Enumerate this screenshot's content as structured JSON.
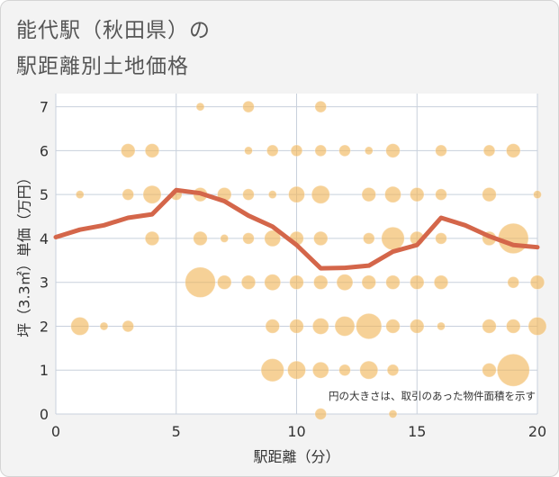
{
  "title_line1": "能代駅（秋田県）の",
  "title_line2": "駅距離別土地価格",
  "chart_data": {
    "type": "scatter",
    "title": "能代駅（秋田県）の駅距離別土地価格",
    "xlabel": "駅距離（分）",
    "ylabel": "坪（3.3㎡）単価（万円）",
    "xlim": [
      0,
      20
    ],
    "ylim": [
      0,
      7.3
    ],
    "xticks": [
      "0",
      "5",
      "10",
      "15",
      "20"
    ],
    "yticks": [
      "0",
      "1",
      "2",
      "3",
      "4",
      "5",
      "6",
      "7"
    ],
    "note": "円の大きさは、取引のあった物件面積を示す",
    "colors": {
      "bubble": "#f0b557",
      "trend": "#d4664a",
      "grid": "#c8d0dc",
      "plot_bg": "#ffffff"
    },
    "bubbles": [
      {
        "x": 6,
        "y": 7,
        "s": 1
      },
      {
        "x": 8,
        "y": 7,
        "s": 2
      },
      {
        "x": 11,
        "y": 7,
        "s": 2
      },
      {
        "x": 3,
        "y": 6,
        "s": 3
      },
      {
        "x": 4,
        "y": 6,
        "s": 3
      },
      {
        "x": 8,
        "y": 6,
        "s": 1
      },
      {
        "x": 9,
        "y": 6,
        "s": 2
      },
      {
        "x": 10,
        "y": 6,
        "s": 2
      },
      {
        "x": 11,
        "y": 6,
        "s": 2
      },
      {
        "x": 12,
        "y": 6,
        "s": 2
      },
      {
        "x": 13,
        "y": 6,
        "s": 1
      },
      {
        "x": 14,
        "y": 6,
        "s": 3
      },
      {
        "x": 16,
        "y": 6,
        "s": 2
      },
      {
        "x": 18,
        "y": 6,
        "s": 2
      },
      {
        "x": 19,
        "y": 6,
        "s": 3
      },
      {
        "x": 1,
        "y": 5,
        "s": 1
      },
      {
        "x": 3,
        "y": 5,
        "s": 2
      },
      {
        "x": 4,
        "y": 5,
        "s": 5
      },
      {
        "x": 5,
        "y": 5,
        "s": 2
      },
      {
        "x": 6,
        "y": 5,
        "s": 3
      },
      {
        "x": 7,
        "y": 5,
        "s": 3
      },
      {
        "x": 8,
        "y": 5,
        "s": 2
      },
      {
        "x": 9,
        "y": 5,
        "s": 1
      },
      {
        "x": 10,
        "y": 5,
        "s": 4
      },
      {
        "x": 11,
        "y": 5,
        "s": 5
      },
      {
        "x": 13,
        "y": 5,
        "s": 3
      },
      {
        "x": 14,
        "y": 5,
        "s": 4
      },
      {
        "x": 15,
        "y": 5,
        "s": 3
      },
      {
        "x": 16,
        "y": 5,
        "s": 2
      },
      {
        "x": 18,
        "y": 5,
        "s": 3
      },
      {
        "x": 20,
        "y": 5,
        "s": 1
      },
      {
        "x": 4,
        "y": 4,
        "s": 3
      },
      {
        "x": 6,
        "y": 4,
        "s": 3
      },
      {
        "x": 7,
        "y": 4,
        "s": 1
      },
      {
        "x": 8,
        "y": 4,
        "s": 2
      },
      {
        "x": 9,
        "y": 4,
        "s": 4
      },
      {
        "x": 10,
        "y": 4,
        "s": 3
      },
      {
        "x": 11,
        "y": 4,
        "s": 3
      },
      {
        "x": 13,
        "y": 4,
        "s": 2
      },
      {
        "x": 14,
        "y": 4,
        "s": 8
      },
      {
        "x": 15,
        "y": 4,
        "s": 3
      },
      {
        "x": 16,
        "y": 4,
        "s": 2
      },
      {
        "x": 18,
        "y": 4,
        "s": 3
      },
      {
        "x": 19,
        "y": 4,
        "s": 14
      },
      {
        "x": 6,
        "y": 3,
        "s": 14
      },
      {
        "x": 7,
        "y": 3,
        "s": 3
      },
      {
        "x": 8,
        "y": 3,
        "s": 3
      },
      {
        "x": 9,
        "y": 3,
        "s": 4
      },
      {
        "x": 10,
        "y": 3,
        "s": 3
      },
      {
        "x": 11,
        "y": 3,
        "s": 3
      },
      {
        "x": 12,
        "y": 3,
        "s": 4
      },
      {
        "x": 13,
        "y": 3,
        "s": 3
      },
      {
        "x": 14,
        "y": 3,
        "s": 3
      },
      {
        "x": 15,
        "y": 3,
        "s": 3
      },
      {
        "x": 16,
        "y": 3,
        "s": 3
      },
      {
        "x": 19,
        "y": 3,
        "s": 2
      },
      {
        "x": 20,
        "y": 3,
        "s": 3
      },
      {
        "x": 1,
        "y": 2,
        "s": 5
      },
      {
        "x": 2,
        "y": 2,
        "s": 1
      },
      {
        "x": 3,
        "y": 2,
        "s": 2
      },
      {
        "x": 9,
        "y": 2,
        "s": 3
      },
      {
        "x": 10,
        "y": 2,
        "s": 3
      },
      {
        "x": 11,
        "y": 2,
        "s": 4
      },
      {
        "x": 12,
        "y": 2,
        "s": 6
      },
      {
        "x": 13,
        "y": 2,
        "s": 10
      },
      {
        "x": 14,
        "y": 2,
        "s": 3
      },
      {
        "x": 15,
        "y": 2,
        "s": 3
      },
      {
        "x": 16,
        "y": 2,
        "s": 1
      },
      {
        "x": 18,
        "y": 2,
        "s": 3
      },
      {
        "x": 19,
        "y": 2,
        "s": 3
      },
      {
        "x": 20,
        "y": 2,
        "s": 5
      },
      {
        "x": 9,
        "y": 1,
        "s": 8
      },
      {
        "x": 10,
        "y": 1,
        "s": 5
      },
      {
        "x": 11,
        "y": 1,
        "s": 4
      },
      {
        "x": 12,
        "y": 1,
        "s": 2
      },
      {
        "x": 13,
        "y": 1,
        "s": 5
      },
      {
        "x": 14,
        "y": 1,
        "s": 2
      },
      {
        "x": 18,
        "y": 1,
        "s": 3
      },
      {
        "x": 19,
        "y": 1,
        "s": 16
      },
      {
        "x": 11,
        "y": 0,
        "s": 2
      },
      {
        "x": 14,
        "y": 0,
        "s": 1
      }
    ],
    "trend": {
      "x": [
        0,
        1,
        2,
        3,
        4,
        5,
        6,
        7,
        8,
        9,
        10,
        11,
        12,
        13,
        14,
        15,
        16,
        17,
        18,
        19,
        20
      ],
      "y": [
        4.03,
        4.2,
        4.3,
        4.47,
        4.55,
        5.1,
        5.03,
        4.85,
        4.52,
        4.27,
        3.85,
        3.32,
        3.33,
        3.38,
        3.7,
        3.85,
        4.47,
        4.3,
        4.05,
        3.85,
        3.8
      ]
    }
  }
}
